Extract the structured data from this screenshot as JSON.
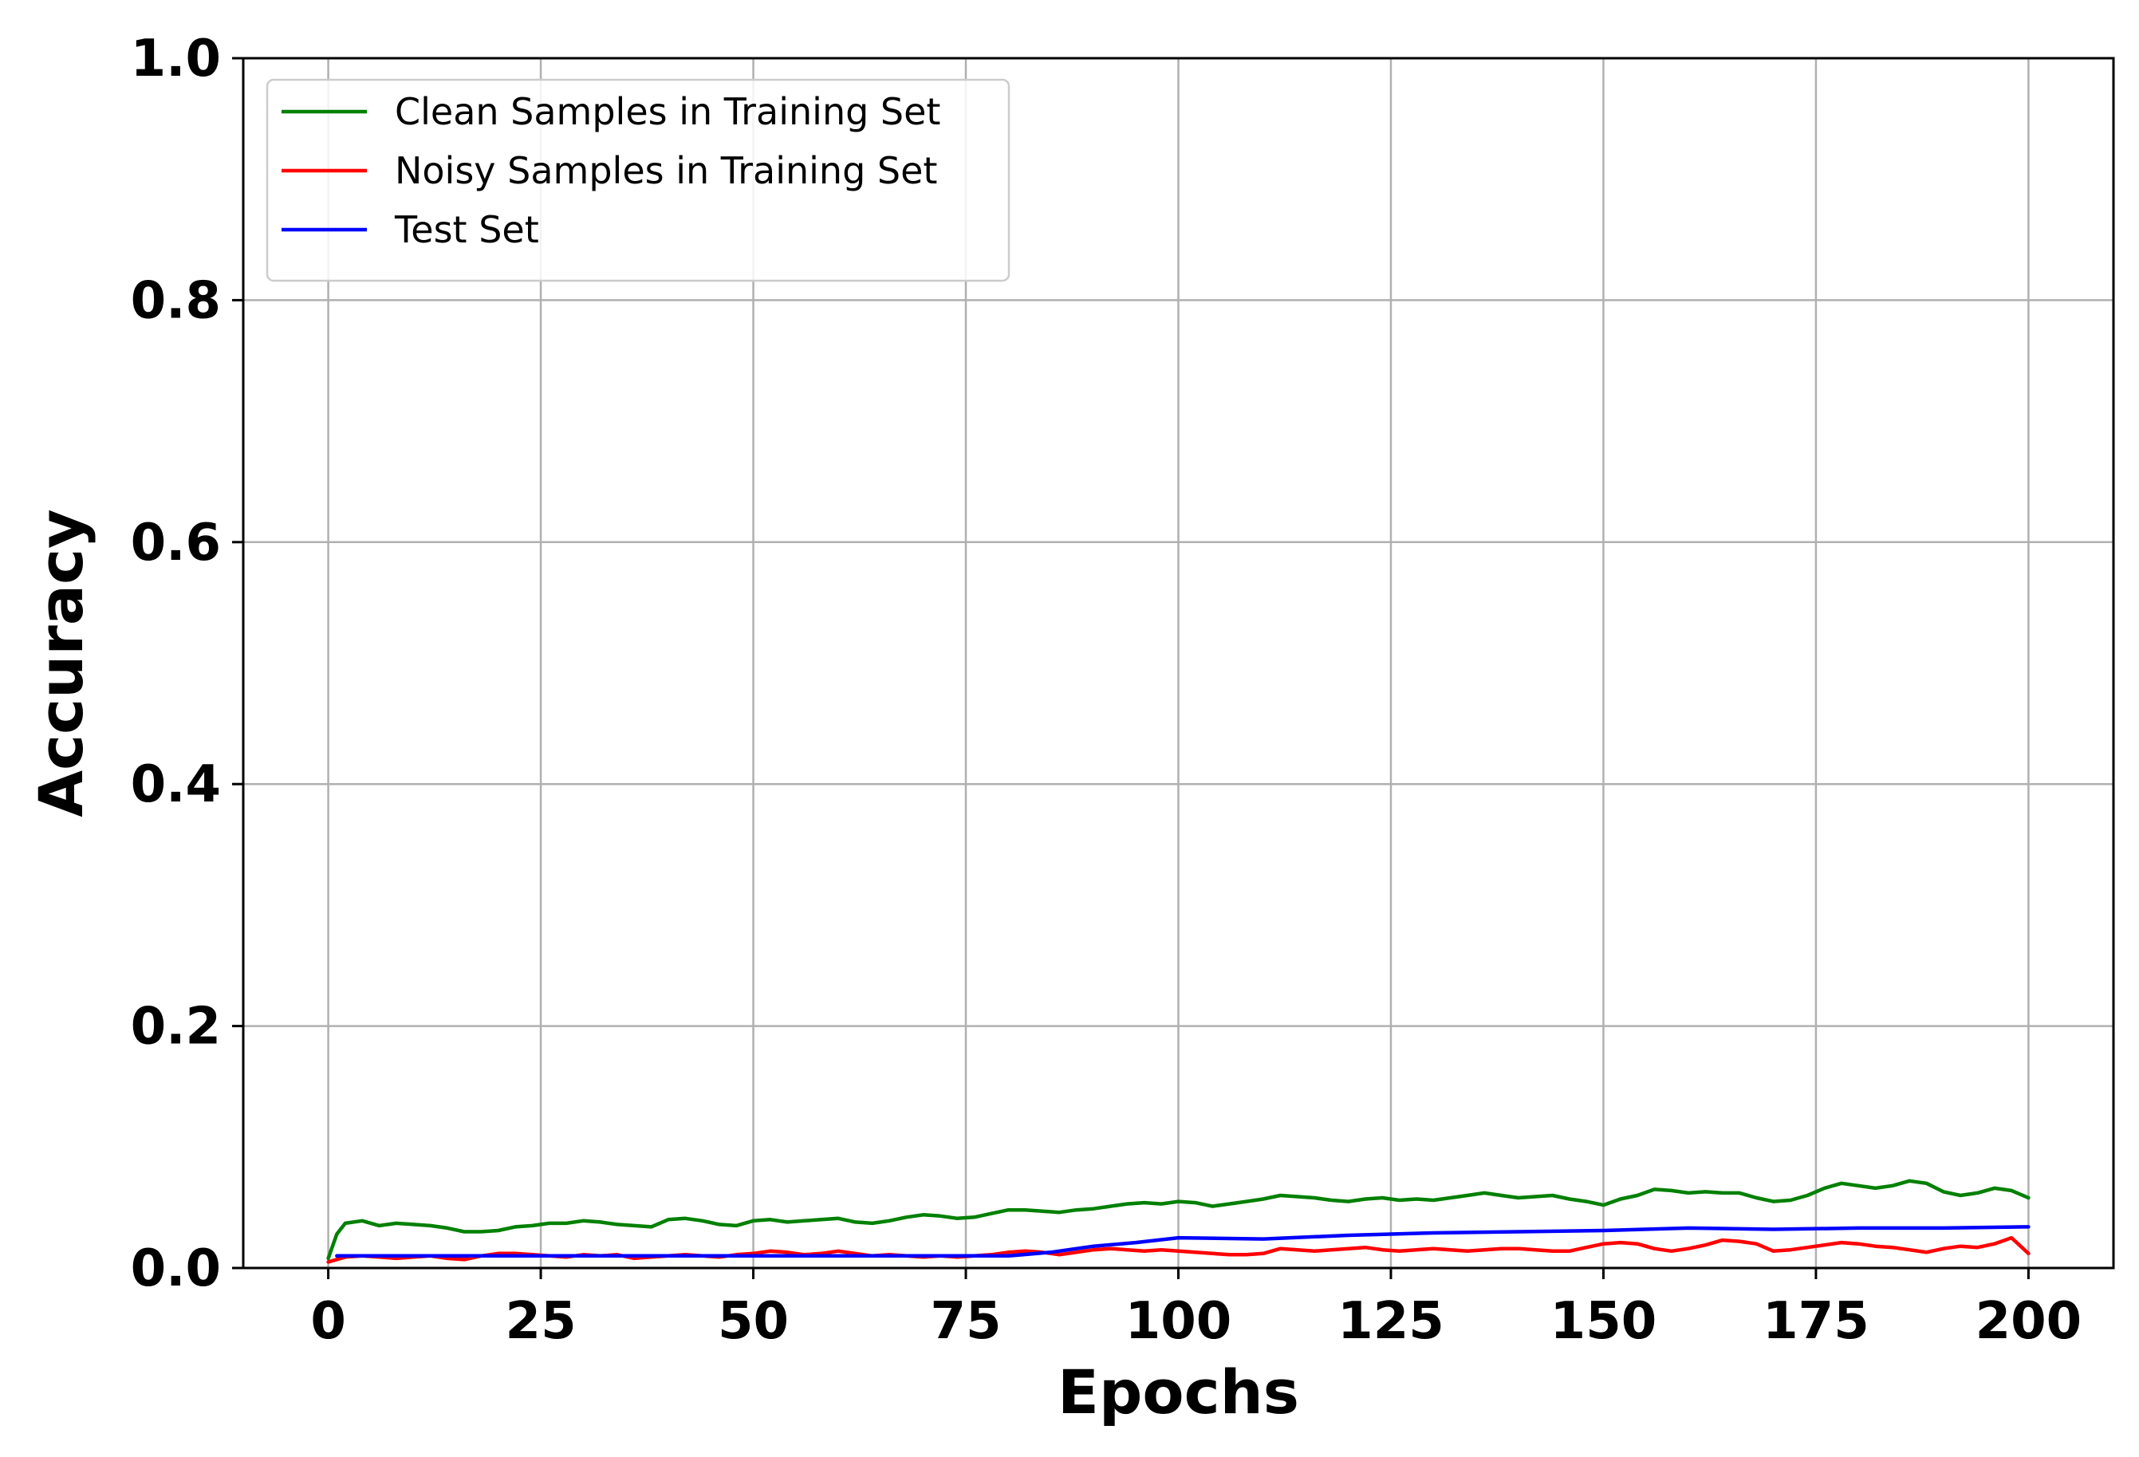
{
  "chart_data": {
    "type": "line",
    "xlabel": "Epochs",
    "ylabel": "Accuracy",
    "xlim": [
      -10,
      210
    ],
    "ylim": [
      0.0,
      1.0
    ],
    "x_ticks": [
      0,
      25,
      50,
      75,
      100,
      125,
      150,
      175,
      200
    ],
    "x_tick_labels": [
      "0",
      "25",
      "50",
      "75",
      "100",
      "125",
      "150",
      "175",
      "200"
    ],
    "y_ticks": [
      0.0,
      0.2,
      0.4,
      0.6,
      0.8,
      1.0
    ],
    "y_tick_labels": [
      "0.0",
      "0.2",
      "0.4",
      "0.6",
      "0.8",
      "1.0"
    ],
    "grid": true,
    "legend_position": "top-left",
    "series": [
      {
        "name": "Clean Samples in Training Set",
        "color": "#008000",
        "x": [
          0,
          1,
          2,
          4,
          6,
          8,
          10,
          12,
          14,
          16,
          18,
          20,
          22,
          24,
          26,
          28,
          30,
          32,
          34,
          36,
          38,
          40,
          42,
          44,
          46,
          48,
          50,
          52,
          54,
          56,
          58,
          60,
          62,
          64,
          66,
          68,
          70,
          72,
          74,
          76,
          78,
          80,
          82,
          84,
          86,
          88,
          90,
          92,
          94,
          96,
          98,
          100,
          102,
          104,
          106,
          108,
          110,
          112,
          114,
          116,
          118,
          120,
          122,
          124,
          126,
          128,
          130,
          132,
          134,
          136,
          138,
          140,
          142,
          144,
          146,
          148,
          150,
          152,
          154,
          156,
          158,
          160,
          162,
          164,
          166,
          168,
          170,
          172,
          174,
          176,
          178,
          180,
          182,
          184,
          186,
          188,
          190,
          192,
          194,
          196,
          198,
          200
        ],
        "y": [
          0.008,
          0.028,
          0.037,
          0.039,
          0.035,
          0.037,
          0.036,
          0.035,
          0.033,
          0.03,
          0.03,
          0.031,
          0.034,
          0.035,
          0.037,
          0.037,
          0.039,
          0.038,
          0.036,
          0.035,
          0.034,
          0.04,
          0.041,
          0.039,
          0.036,
          0.035,
          0.039,
          0.04,
          0.038,
          0.039,
          0.04,
          0.041,
          0.038,
          0.037,
          0.039,
          0.042,
          0.044,
          0.043,
          0.041,
          0.042,
          0.045,
          0.048,
          0.048,
          0.047,
          0.046,
          0.048,
          0.049,
          0.051,
          0.053,
          0.054,
          0.053,
          0.055,
          0.054,
          0.051,
          0.053,
          0.055,
          0.057,
          0.06,
          0.059,
          0.058,
          0.056,
          0.055,
          0.057,
          0.058,
          0.056,
          0.057,
          0.056,
          0.058,
          0.06,
          0.062,
          0.06,
          0.058,
          0.059,
          0.06,
          0.057,
          0.055,
          0.052,
          0.057,
          0.06,
          0.065,
          0.064,
          0.062,
          0.063,
          0.062,
          0.062,
          0.058,
          0.055,
          0.056,
          0.06,
          0.066,
          0.07,
          0.068,
          0.066,
          0.068,
          0.072,
          0.07,
          0.063,
          0.06,
          0.062,
          0.066,
          0.064,
          0.058
        ]
      },
      {
        "name": "Noisy Samples in Training Set",
        "color": "#ff0000",
        "x": [
          0,
          2,
          4,
          6,
          8,
          10,
          12,
          14,
          16,
          18,
          20,
          22,
          24,
          26,
          28,
          30,
          32,
          34,
          36,
          38,
          40,
          42,
          44,
          46,
          48,
          50,
          52,
          54,
          56,
          58,
          60,
          62,
          64,
          66,
          68,
          70,
          72,
          74,
          76,
          78,
          80,
          82,
          84,
          86,
          88,
          90,
          92,
          94,
          96,
          98,
          100,
          102,
          104,
          106,
          108,
          110,
          112,
          114,
          116,
          118,
          120,
          122,
          124,
          126,
          128,
          130,
          132,
          134,
          136,
          138,
          140,
          142,
          144,
          146,
          148,
          150,
          152,
          154,
          156,
          158,
          160,
          162,
          164,
          166,
          168,
          170,
          172,
          174,
          176,
          178,
          180,
          182,
          184,
          186,
          188,
          190,
          192,
          194,
          196,
          198,
          200
        ],
        "y": [
          0.005,
          0.009,
          0.01,
          0.009,
          0.008,
          0.009,
          0.01,
          0.008,
          0.007,
          0.01,
          0.012,
          0.012,
          0.011,
          0.01,
          0.009,
          0.011,
          0.01,
          0.011,
          0.008,
          0.009,
          0.01,
          0.011,
          0.01,
          0.009,
          0.011,
          0.012,
          0.014,
          0.013,
          0.011,
          0.012,
          0.014,
          0.012,
          0.01,
          0.011,
          0.01,
          0.009,
          0.01,
          0.009,
          0.01,
          0.011,
          0.013,
          0.014,
          0.013,
          0.011,
          0.013,
          0.015,
          0.016,
          0.015,
          0.014,
          0.015,
          0.014,
          0.013,
          0.012,
          0.011,
          0.011,
          0.012,
          0.016,
          0.015,
          0.014,
          0.015,
          0.016,
          0.017,
          0.015,
          0.014,
          0.015,
          0.016,
          0.015,
          0.014,
          0.015,
          0.016,
          0.016,
          0.015,
          0.014,
          0.014,
          0.017,
          0.02,
          0.021,
          0.02,
          0.016,
          0.014,
          0.016,
          0.019,
          0.023,
          0.022,
          0.02,
          0.014,
          0.015,
          0.017,
          0.019,
          0.021,
          0.02,
          0.018,
          0.017,
          0.015,
          0.013,
          0.016,
          0.018,
          0.017,
          0.02,
          0.025,
          0.012
        ]
      },
      {
        "name": "Test Set",
        "color": "#0000ff",
        "x": [
          1,
          10,
          20,
          30,
          40,
          50,
          60,
          70,
          80,
          85,
          90,
          95,
          100,
          110,
          120,
          130,
          140,
          150,
          160,
          170,
          180,
          190,
          200
        ],
        "y": [
          0.01,
          0.01,
          0.01,
          0.01,
          0.01,
          0.01,
          0.01,
          0.01,
          0.01,
          0.013,
          0.018,
          0.021,
          0.025,
          0.024,
          0.027,
          0.029,
          0.03,
          0.031,
          0.033,
          0.032,
          0.033,
          0.033,
          0.034
        ]
      }
    ]
  }
}
